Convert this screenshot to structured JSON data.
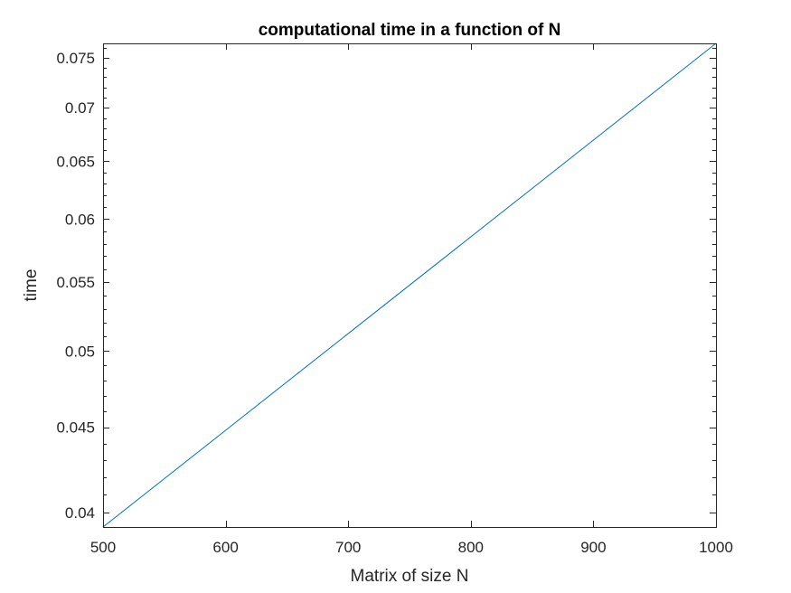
{
  "chart_data": {
    "type": "line",
    "title": "computational time in a function of N",
    "xlabel": "Matrix of size N",
    "ylabel": "time",
    "y_scale": "log",
    "xlim": [
      500,
      1000
    ],
    "ylim": [
      0.0392,
      0.0765
    ],
    "x_ticks": [
      500,
      600,
      700,
      800,
      900,
      1000
    ],
    "x_tick_labels": [
      "500",
      "600",
      "700",
      "800",
      "900",
      "1000"
    ],
    "y_ticks": [
      0.04,
      0.045,
      0.05,
      0.055,
      0.06,
      0.065,
      0.07,
      0.075
    ],
    "y_tick_labels": [
      "0.04",
      "0.045",
      "0.05",
      "0.055",
      "0.06",
      "0.065",
      "0.07",
      "0.075"
    ],
    "grid": false,
    "line_color": "#0072BD",
    "series": [
      {
        "name": "time",
        "x": [
          500,
          1000
        ],
        "y": [
          0.0392,
          0.0765
        ]
      }
    ]
  }
}
